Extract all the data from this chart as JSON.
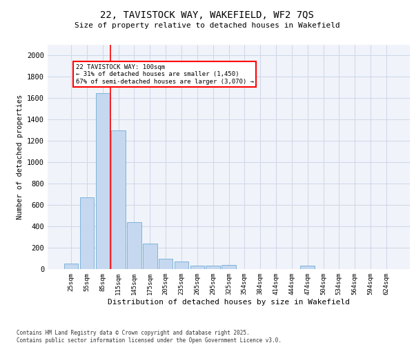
{
  "title_line1": "22, TAVISTOCK WAY, WAKEFIELD, WF2 7QS",
  "title_line2": "Size of property relative to detached houses in Wakefield",
  "xlabel": "Distribution of detached houses by size in Wakefield",
  "ylabel": "Number of detached properties",
  "categories": [
    "25sqm",
    "55sqm",
    "85sqm",
    "115sqm",
    "145sqm",
    "175sqm",
    "205sqm",
    "235sqm",
    "265sqm",
    "295sqm",
    "325sqm",
    "354sqm",
    "384sqm",
    "414sqm",
    "444sqm",
    "474sqm",
    "504sqm",
    "534sqm",
    "564sqm",
    "594sqm",
    "624sqm"
  ],
  "values": [
    50,
    670,
    1650,
    1300,
    440,
    240,
    100,
    70,
    30,
    30,
    40,
    0,
    0,
    0,
    0,
    30,
    0,
    0,
    0,
    0,
    0
  ],
  "bar_color": "#c5d8f0",
  "bar_edgecolor": "#7fb3d9",
  "grid_color": "#d0d8e8",
  "annotation_box_text": "22 TAVISTOCK WAY: 100sqm\n← 31% of detached houses are smaller (1,450)\n67% of semi-detached houses are larger (3,070) →",
  "red_line_x": 2.5,
  "ylim": [
    0,
    2100
  ],
  "yticks": [
    0,
    200,
    400,
    600,
    800,
    1000,
    1200,
    1400,
    1600,
    1800,
    2000
  ],
  "footer_line1": "Contains HM Land Registry data © Crown copyright and database right 2025.",
  "footer_line2": "Contains public sector information licensed under the Open Government Licence v3.0.",
  "bg_color": "#f0f4fa"
}
